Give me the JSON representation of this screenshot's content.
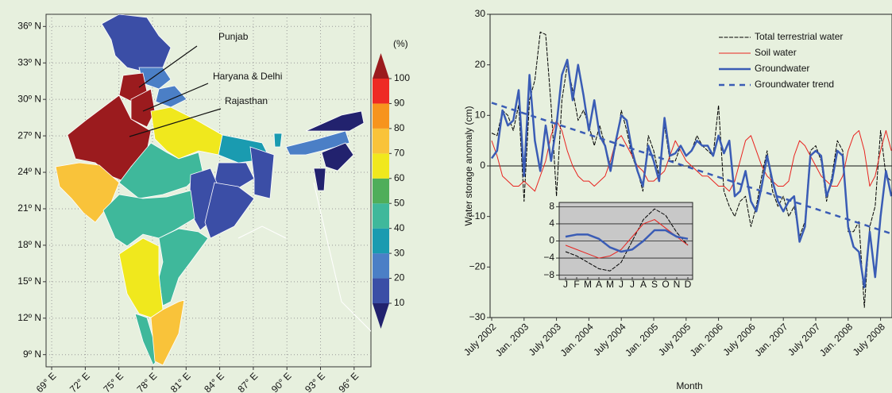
{
  "chart_data": [
    {
      "type": "map",
      "xlim": [
        68.5,
        97.5
      ],
      "ylim": [
        8,
        37
      ],
      "grid": true,
      "xticks": [
        {
          "value": 69,
          "label": "69° E"
        },
        {
          "value": 72,
          "label": "72° E"
        },
        {
          "value": 75,
          "label": "75° E"
        },
        {
          "value": 78,
          "label": "78° E"
        },
        {
          "value": 81,
          "label": "81° E"
        },
        {
          "value": 84,
          "label": "84° E"
        },
        {
          "value": 87,
          "label": "87° E"
        },
        {
          "value": 90,
          "label": "90° E"
        },
        {
          "value": 93,
          "label": "93° E"
        },
        {
          "value": 96,
          "label": "96° E"
        }
      ],
      "yticks": [
        {
          "value": 9,
          "label": "9º N"
        },
        {
          "value": 12,
          "label": "12º N"
        },
        {
          "value": 15,
          "label": "15º N"
        },
        {
          "value": 18,
          "label": "18º N"
        },
        {
          "value": 21,
          "label": "21º N"
        },
        {
          "value": 24,
          "label": "24º N"
        },
        {
          "value": 27,
          "label": "27º N"
        },
        {
          "value": 30,
          "label": "30º N"
        },
        {
          "value": 33,
          "label": "33º N"
        },
        {
          "value": 36,
          "label": "36º N"
        }
      ],
      "colorbar": {
        "label": "(%)",
        "ticks": [
          10,
          20,
          30,
          40,
          50,
          60,
          70,
          80,
          90,
          100
        ],
        "colors": [
          "#22226e",
          "#3b4ea6",
          "#4b7fc6",
          "#1a9bb0",
          "#3fb89b",
          "#4fae5a",
          "#f0e81d",
          "#f9c33a",
          "#f7941d",
          "#ee2a24",
          "#9b1b1e"
        ]
      },
      "annotations": [
        "Punjab",
        "Haryana & Delhi",
        "Rajasthan"
      ]
    },
    {
      "type": "line",
      "ylabel": "Water storage anomaly (cm)",
      "xlabel": "Month",
      "ylim": [
        -30,
        30
      ],
      "yticks": [
        {
          "value": -30,
          "label": "−30"
        },
        {
          "value": -20,
          "label": "−20"
        },
        {
          "value": -10,
          "label": "−10"
        },
        0,
        10,
        20,
        30
      ],
      "zero_line": true,
      "grid": false,
      "legend": "upper right",
      "categories": [
        "July 2002",
        null,
        null,
        null,
        null,
        null,
        "Jan. 2003",
        null,
        null,
        null,
        null,
        null,
        "July 2003",
        null,
        null,
        null,
        null,
        null,
        "Jan. 2004",
        null,
        null,
        null,
        null,
        null,
        "July 2004",
        null,
        null,
        null,
        null,
        null,
        "Jan. 2005",
        null,
        null,
        null,
        null,
        null,
        "July 2005",
        null,
        null,
        null,
        null,
        null,
        "Jan. 2006",
        null,
        null,
        null,
        null,
        null,
        "July 2006",
        null,
        null,
        null,
        null,
        null,
        "Jan. 2007",
        null,
        null,
        null,
        null,
        null,
        "July 2007",
        null,
        null,
        null,
        null,
        null,
        "Jan. 2008",
        null,
        null,
        null,
        null,
        null,
        "July 2008",
        null,
        null
      ],
      "series": [
        {
          "name": "Total terrestrial water",
          "color": "#000000",
          "line_style": "thin-dashed",
          "values": [
            6.5,
            6,
            11,
            10,
            7,
            12,
            -7,
            13,
            17,
            26.5,
            26,
            12,
            -6,
            13,
            20,
            15,
            9,
            11,
            8,
            4,
            8,
            4,
            0,
            4,
            11,
            7,
            2,
            -1,
            -5,
            6,
            3,
            -2,
            8,
            1,
            1,
            4,
            2,
            3,
            6,
            4,
            3,
            2,
            12,
            -5,
            -8,
            -10,
            -7,
            -6,
            -12,
            -8,
            -2,
            3,
            -5,
            -8,
            -6,
            -10,
            -8,
            -14,
            -11,
            3,
            4,
            1,
            -7,
            -2,
            5,
            3,
            -13,
            -13,
            -11,
            -28,
            -12,
            -8,
            7,
            -2,
            -3
          ]
        },
        {
          "name": "Soil water",
          "color": "#e8231f",
          "line_style": "thin",
          "values": [
            5,
            2,
            -2,
            -3,
            -4,
            -4,
            -3,
            -4,
            -5,
            -2,
            1,
            6,
            9,
            7,
            3,
            0,
            -2,
            -3,
            -3,
            -4,
            -3,
            -2,
            1,
            5,
            6,
            4,
            2,
            0,
            -1,
            -3,
            -3,
            -2,
            -1,
            2,
            5,
            3,
            1,
            0,
            -1,
            -2,
            -2,
            -3,
            -4,
            -4,
            -5,
            -3,
            1,
            5,
            6,
            3,
            0,
            -2,
            -3,
            -4,
            -4,
            -3,
            2,
            5,
            4,
            2,
            0,
            -2,
            -3,
            -4,
            -4,
            -2,
            3,
            6,
            7,
            3,
            -4,
            -2,
            3,
            7,
            3
          ]
        },
        {
          "name": "Groundwater",
          "color": "#3a5cb5",
          "line_style": "thick",
          "values": [
            1.5,
            3,
            11,
            8,
            9,
            15,
            -2,
            18,
            5,
            -1,
            8,
            1,
            8,
            18,
            21,
            13,
            20,
            14,
            7,
            13,
            6,
            4,
            -1,
            5,
            10,
            9,
            3,
            -1,
            -4,
            4,
            1,
            -3,
            9.5,
            2,
            2.5,
            4,
            2,
            3,
            5,
            4,
            4,
            2,
            6,
            2.5,
            5,
            -6,
            -5,
            -1,
            -7,
            -9,
            -4,
            2,
            -3,
            -7,
            -9,
            -7,
            -6,
            -15,
            -12,
            2,
            3,
            2,
            -6,
            -3,
            3,
            2,
            -12,
            -16,
            -17,
            -24,
            -13,
            -22,
            -10,
            -1,
            -6
          ]
        },
        {
          "name": "Groundwater trend",
          "color": "#3a5cb5",
          "line_style": "dashed",
          "values": [
            12.5,
            12.15,
            11.8,
            11.45,
            11.1,
            10.75,
            10.4,
            10.05,
            9.7,
            9.35,
            9,
            8.65,
            8.3,
            7.95,
            7.6,
            7.25,
            6.9,
            6.55,
            6.2,
            5.85,
            5.5,
            5.15,
            4.8,
            4.45,
            4.1,
            3.75,
            3.4,
            3.05,
            2.7,
            2.35,
            2,
            1.65,
            1.3,
            0.95,
            0.6,
            0.25,
            -0.1,
            -0.45,
            -0.8,
            -1.15,
            -1.5,
            -1.85,
            -2.2,
            -2.55,
            -2.9,
            -3.25,
            -3.6,
            -3.95,
            -4.3,
            -4.65,
            -5,
            -5.35,
            -5.7,
            -6.05,
            -6.4,
            -6.75,
            -7.1,
            -7.45,
            -7.8,
            -8.15,
            -8.5,
            -8.85,
            -9.2,
            -9.55,
            -9.9,
            -10.25,
            -10.6,
            -10.95,
            -11.3,
            -11.65,
            -12,
            -12.35,
            -12.7,
            -13.05,
            -13.4
          ]
        }
      ]
    },
    {
      "type": "line",
      "background": "#c8c8c8",
      "ylim": [
        -9,
        9
      ],
      "yticks": [
        {
          "value": -8,
          "label": "−8"
        },
        {
          "value": -4,
          "label": "−4"
        },
        0,
        4,
        8
      ],
      "grid": true,
      "zero_line": false,
      "legend": null,
      "categories": [
        "J",
        "F",
        "M",
        "A",
        "M",
        "J",
        "J",
        "A",
        "S",
        "O",
        "N",
        "D"
      ],
      "series": [
        {
          "color": "#000000",
          "line_style": "thin-dashed",
          "values": [
            -2.5,
            -3.5,
            -5,
            -6.5,
            -7,
            -5,
            0,
            5,
            7.5,
            6,
            2,
            -1
          ]
        },
        {
          "color": "#e8231f",
          "line_style": "thin",
          "values": [
            -1,
            -2,
            -3,
            -4,
            -3.5,
            -2,
            1,
            4,
            5,
            3,
            1,
            -1
          ]
        },
        {
          "color": "#3a5cb5",
          "line_style": "thick",
          "values": [
            1,
            1.5,
            1.5,
            0.5,
            -1.5,
            -2.5,
            -2,
            0,
            2.5,
            2.5,
            1,
            0.5
          ]
        }
      ]
    }
  ]
}
